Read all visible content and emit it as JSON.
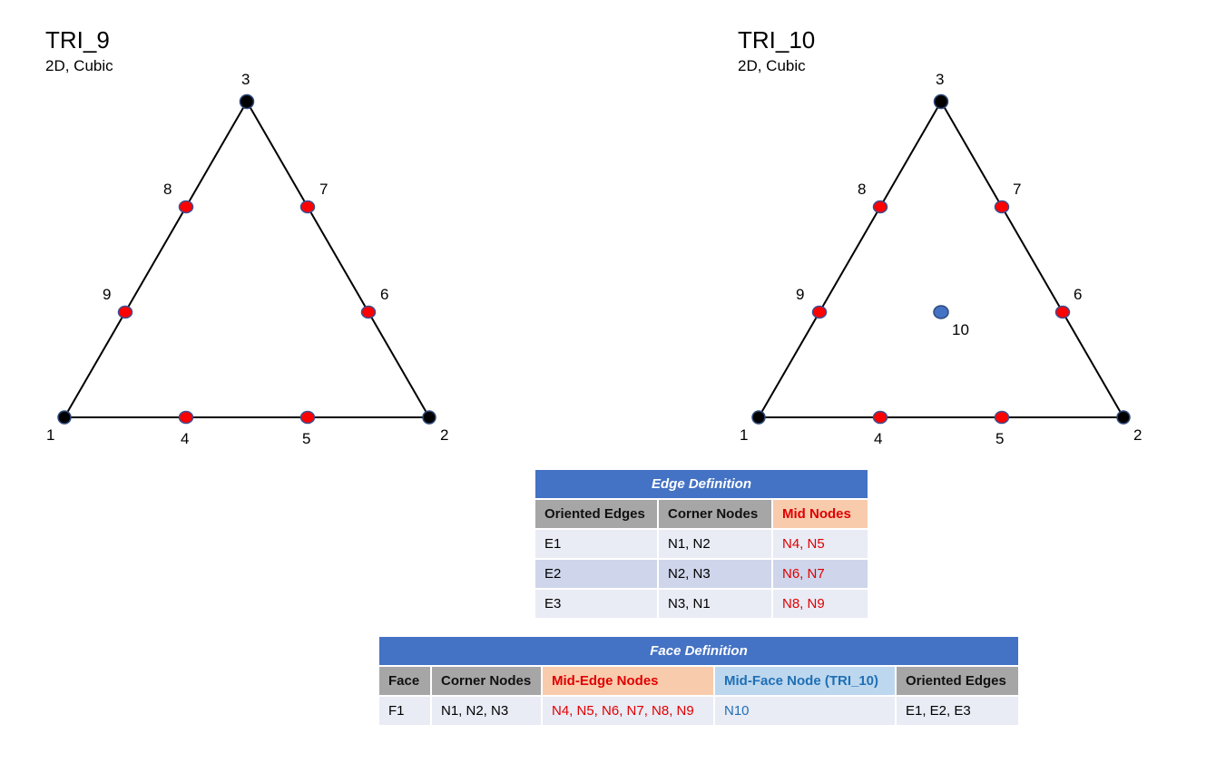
{
  "diagrams": [
    {
      "title": "TRI_9",
      "subtitle": "2D, Cubic",
      "corner_labels": [
        "1",
        "2",
        "3"
      ],
      "mid_labels": [
        "4",
        "5",
        "6",
        "7",
        "8",
        "9"
      ]
    },
    {
      "title": "TRI_10",
      "subtitle": "2D, Cubic",
      "corner_labels": [
        "1",
        "2",
        "3"
      ],
      "mid_labels": [
        "4",
        "5",
        "6",
        "7",
        "8",
        "9"
      ],
      "face_label": "10"
    }
  ],
  "colors": {
    "corner_node": "#000000",
    "mid_node": "#ff0000",
    "face_node": "#4472c4",
    "header_bar": "#4472c4"
  },
  "edge_table": {
    "caption": "Edge Definition",
    "headers": [
      "Oriented Edges",
      "Corner Nodes",
      "Mid Nodes"
    ],
    "rows": [
      [
        "E1",
        "N1, N2",
        "N4, N5"
      ],
      [
        "E2",
        "N2, N3",
        "N6, N7"
      ],
      [
        "E3",
        "N3, N1",
        "N8, N9"
      ]
    ]
  },
  "face_table": {
    "caption": "Face Definition",
    "headers": [
      "Face",
      "Corner Nodes",
      "Mid-Edge Nodes",
      "Mid-Face Node (TRI_10)",
      "Oriented Edges"
    ],
    "rows": [
      [
        "F1",
        "N1, N2, N3",
        "N4, N5, N6, N7, N8, N9",
        "N10",
        "E1, E2, E3"
      ]
    ]
  }
}
